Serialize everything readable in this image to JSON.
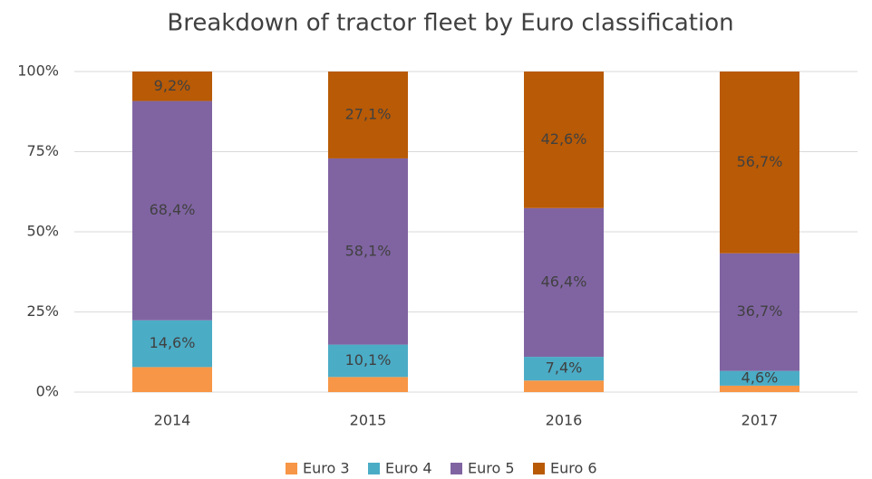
{
  "chart_data": {
    "type": "stacked_bar",
    "title": "Breakdown of tractor fleet by Euro classification",
    "categories": [
      "2014",
      "2015",
      "2016",
      "2017"
    ],
    "series": [
      {
        "name": "Euro 3",
        "color": "#f79646",
        "values": [
          7.8,
          4.7,
          3.6,
          2.0
        ]
      },
      {
        "name": "Euro 4",
        "color": "#4bacc6",
        "values": [
          14.6,
          10.1,
          7.4,
          4.6
        ],
        "value_labels": [
          "14,6%",
          "10,1%",
          "7,4%",
          "4,6%"
        ]
      },
      {
        "name": "Euro 5",
        "color": "#8064a2",
        "values": [
          68.4,
          58.1,
          46.4,
          36.7
        ],
        "value_labels": [
          "68,4%",
          "58,1%",
          "46,4%",
          "36,7%"
        ]
      },
      {
        "name": "Euro 6",
        "color": "#b85a06",
        "values": [
          9.2,
          27.1,
          42.6,
          56.7
        ],
        "value_labels": [
          "9,2%",
          "27,1%",
          "42,6%",
          "56,7%"
        ]
      }
    ],
    "ylim": [
      0,
      100
    ],
    "yticks": [
      {
        "value": 0,
        "label": "0%"
      },
      {
        "value": 25,
        "label": "25%"
      },
      {
        "value": 50,
        "label": "50%"
      },
      {
        "value": 75,
        "label": "75%"
      },
      {
        "value": 100,
        "label": "100%"
      }
    ],
    "grid": true,
    "legend": "bottom"
  }
}
